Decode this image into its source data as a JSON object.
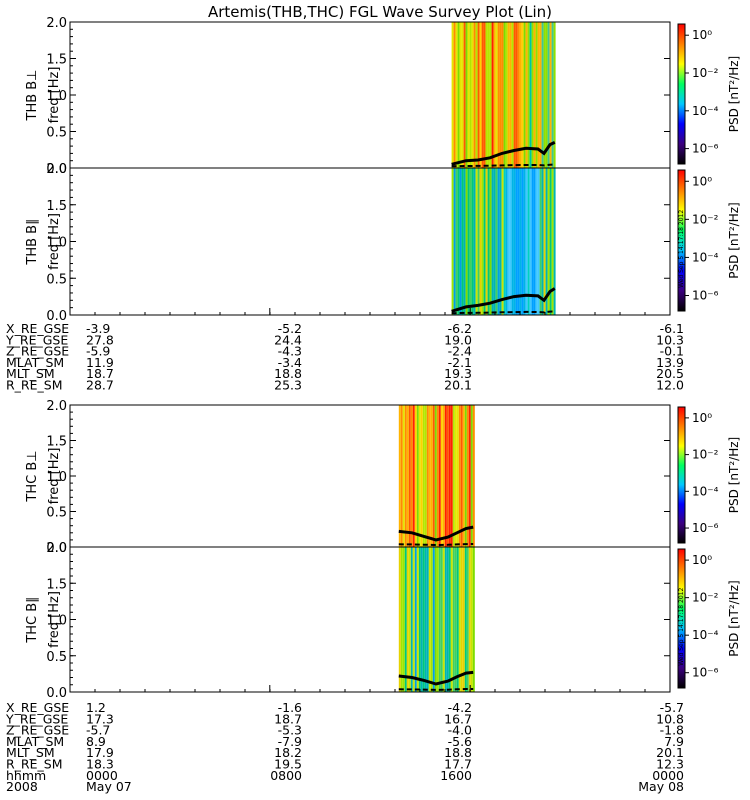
{
  "chart_data": {
    "type": "heatmap",
    "title": "Artemis(THB,THC) FGL Wave Survey Plot (Lin)",
    "colorbar": {
      "label": "PSD [nT²/Hz]",
      "tick_labels": [
        "10⁰",
        "10⁻²",
        "10⁻⁴",
        "10⁻⁶"
      ],
      "colors": [
        "#000000",
        "#3b007f",
        "#0000ff",
        "#00c8ff",
        "#00ff60",
        "#ffff00",
        "#ff8000",
        "#ff0000"
      ],
      "stamp": "Wed Sep 5 14:17:18 2012"
    },
    "panels": [
      {
        "ylabel1": "THB B⊥",
        "ylabel2": "freq [Hz]",
        "yticks": [
          "0.0",
          "0.5",
          "1.0",
          "1.5",
          "2.0"
        ],
        "ylim": [
          0,
          2.0
        ],
        "data_start": 0.636,
        "data_end": 0.808,
        "palette": "warm",
        "stamp": false,
        "line": [
          [
            0.636,
            0.05
          ],
          [
            0.66,
            0.1
          ],
          [
            0.68,
            0.11
          ],
          [
            0.7,
            0.14
          ],
          [
            0.72,
            0.2
          ],
          [
            0.74,
            0.24
          ],
          [
            0.76,
            0.27
          ],
          [
            0.78,
            0.26
          ],
          [
            0.79,
            0.2
          ],
          [
            0.8,
            0.32
          ],
          [
            0.808,
            0.35
          ]
        ]
      },
      {
        "ylabel1": "THB B∥",
        "ylabel2": "freq [Hz]",
        "yticks": [
          "0.0",
          "0.5",
          "1.0",
          "1.5",
          "2.0"
        ],
        "ylim": [
          0,
          2.0
        ],
        "data_start": 0.636,
        "data_end": 0.808,
        "palette": "cool",
        "stamp": true,
        "line": [
          [
            0.636,
            0.05
          ],
          [
            0.66,
            0.11
          ],
          [
            0.68,
            0.13
          ],
          [
            0.7,
            0.16
          ],
          [
            0.72,
            0.21
          ],
          [
            0.74,
            0.25
          ],
          [
            0.76,
            0.27
          ],
          [
            0.78,
            0.26
          ],
          [
            0.79,
            0.2
          ],
          [
            0.8,
            0.32
          ],
          [
            0.808,
            0.36
          ]
        ]
      },
      {
        "ylabel1": "THC B⊥",
        "ylabel2": "freq [Hz]",
        "yticks": [
          "0.0",
          "0.5",
          "1.0",
          "1.5",
          "2.0"
        ],
        "ylim": [
          0,
          2.0
        ],
        "data_start": 0.548,
        "data_end": 0.672,
        "palette": "warm",
        "stamp": false,
        "line": [
          [
            0.548,
            0.22
          ],
          [
            0.57,
            0.2
          ],
          [
            0.59,
            0.15
          ],
          [
            0.61,
            0.1
          ],
          [
            0.63,
            0.14
          ],
          [
            0.645,
            0.2
          ],
          [
            0.66,
            0.26
          ],
          [
            0.672,
            0.28
          ]
        ]
      },
      {
        "ylabel1": "THC B∥",
        "ylabel2": "freq [Hz]",
        "yticks": [
          "0.0",
          "0.5",
          "1.0",
          "1.5",
          "2.0"
        ],
        "ylim": [
          0,
          2.0
        ],
        "data_start": 0.548,
        "data_end": 0.672,
        "palette": "cool",
        "stamp": true,
        "line": [
          [
            0.548,
            0.22
          ],
          [
            0.57,
            0.2
          ],
          [
            0.59,
            0.16
          ],
          [
            0.61,
            0.11
          ],
          [
            0.63,
            0.15
          ],
          [
            0.645,
            0.21
          ],
          [
            0.66,
            0.26
          ],
          [
            0.672,
            0.27
          ]
        ]
      }
    ],
    "ephemeris_thb": {
      "labels": [
        "X_RE_GSE",
        "Y_RE_GSE",
        "Z_RE_GSE",
        "MLAT_SM",
        "MLT_SM",
        "R_RE_SM"
      ],
      "columns": [
        [
          "-3.9",
          "27.8",
          "-5.9",
          "11.9",
          "18.7",
          "28.7"
        ],
        [
          "-5.2",
          "24.4",
          "-4.3",
          "-3.4",
          "18.8",
          "25.3"
        ],
        [
          "-6.2",
          "19.0",
          "-2.4",
          "-2.1",
          "19.3",
          "20.1"
        ],
        [
          "-6.1",
          "10.3",
          "-0.1",
          "13.9",
          "20.5",
          "12.0"
        ]
      ]
    },
    "ephemeris_thc": {
      "labels": [
        "X_RE_GSE",
        "Y_RE_GSE",
        "Z_RE_GSE",
        "MLAT_SM",
        "MLT_SM",
        "R_RE_SM",
        "hhmm",
        "2008"
      ],
      "columns": [
        [
          "1.2",
          "17.3",
          "-5.7",
          "8.9",
          "17.9",
          "18.3",
          "0000",
          "May 07"
        ],
        [
          "-1.6",
          "18.7",
          "-5.3",
          "-7.9",
          "18.2",
          "19.5",
          "0800",
          ""
        ],
        [
          "-4.2",
          "16.7",
          "-4.0",
          "-5.6",
          "18.8",
          "17.7",
          "1600",
          ""
        ],
        [
          "-5.7",
          "10.8",
          "-1.8",
          "7.9",
          "20.1",
          "12.3",
          "0000",
          "May 08"
        ]
      ]
    }
  }
}
